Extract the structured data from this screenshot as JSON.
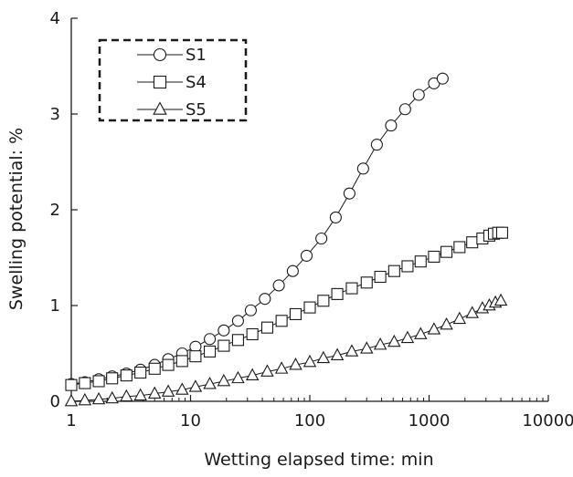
{
  "chart_data": {
    "type": "scatter",
    "xlabel": "Wetting elapsed time: min",
    "ylabel": "Swelling potential: %",
    "x_scale": "log",
    "xlim": [
      1,
      10000
    ],
    "ylim": [
      0,
      4
    ],
    "x_ticks": [
      1,
      10,
      100,
      1000,
      10000
    ],
    "x_tick_labels": [
      "1",
      "10",
      "100",
      "1000",
      "10000"
    ],
    "y_ticks": [
      0,
      1,
      2,
      3,
      4
    ],
    "y_tick_labels": [
      "0",
      "1",
      "2",
      "3",
      "4"
    ],
    "grid": false,
    "legend_position": "top-left",
    "legend_border": "dashed",
    "series": [
      {
        "name": "S1",
        "marker": "circle",
        "x": [
          1,
          1.3,
          1.7,
          2.2,
          2.9,
          3.8,
          5,
          6.5,
          8.5,
          11,
          14.5,
          19,
          25,
          32,
          42,
          55,
          72,
          94,
          125,
          165,
          215,
          280,
          365,
          480,
          630,
          820,
          1100,
          1300
        ],
        "y": [
          0.18,
          0.2,
          0.23,
          0.26,
          0.29,
          0.33,
          0.38,
          0.44,
          0.5,
          0.57,
          0.65,
          0.74,
          0.84,
          0.95,
          1.07,
          1.21,
          1.36,
          1.52,
          1.7,
          1.92,
          2.17,
          2.43,
          2.68,
          2.88,
          3.05,
          3.2,
          3.32,
          3.37
        ]
      },
      {
        "name": "S4",
        "marker": "square",
        "x": [
          1,
          1.3,
          1.7,
          2.2,
          2.9,
          3.8,
          5,
          6.5,
          8.5,
          11,
          14.5,
          19,
          25,
          33,
          44,
          58,
          76,
          100,
          130,
          170,
          225,
          300,
          390,
          510,
          660,
          850,
          1100,
          1400,
          1800,
          2300,
          2800,
          3200,
          3500,
          3800,
          4100
        ],
        "y": [
          0.17,
          0.19,
          0.21,
          0.24,
          0.27,
          0.3,
          0.34,
          0.38,
          0.42,
          0.47,
          0.52,
          0.58,
          0.64,
          0.7,
          0.77,
          0.84,
          0.91,
          0.98,
          1.05,
          1.12,
          1.18,
          1.24,
          1.3,
          1.36,
          1.41,
          1.46,
          1.51,
          1.56,
          1.61,
          1.66,
          1.7,
          1.73,
          1.75,
          1.76,
          1.76
        ]
      },
      {
        "name": "S5",
        "marker": "triangle",
        "x": [
          1,
          1.3,
          1.7,
          2.2,
          2.9,
          3.8,
          5,
          6.5,
          8.5,
          11,
          14.5,
          19,
          25,
          33,
          44,
          58,
          76,
          100,
          130,
          170,
          225,
          300,
          390,
          510,
          660,
          850,
          1100,
          1400,
          1800,
          2300,
          2800,
          3200,
          3600,
          4000
        ],
        "y": [
          0.0,
          0.01,
          0.02,
          0.03,
          0.05,
          0.06,
          0.08,
          0.1,
          0.12,
          0.15,
          0.18,
          0.21,
          0.24,
          0.27,
          0.31,
          0.34,
          0.38,
          0.41,
          0.45,
          0.48,
          0.52,
          0.55,
          0.59,
          0.62,
          0.66,
          0.7,
          0.75,
          0.8,
          0.86,
          0.92,
          0.97,
          1.0,
          1.03,
          1.05
        ]
      }
    ]
  }
}
